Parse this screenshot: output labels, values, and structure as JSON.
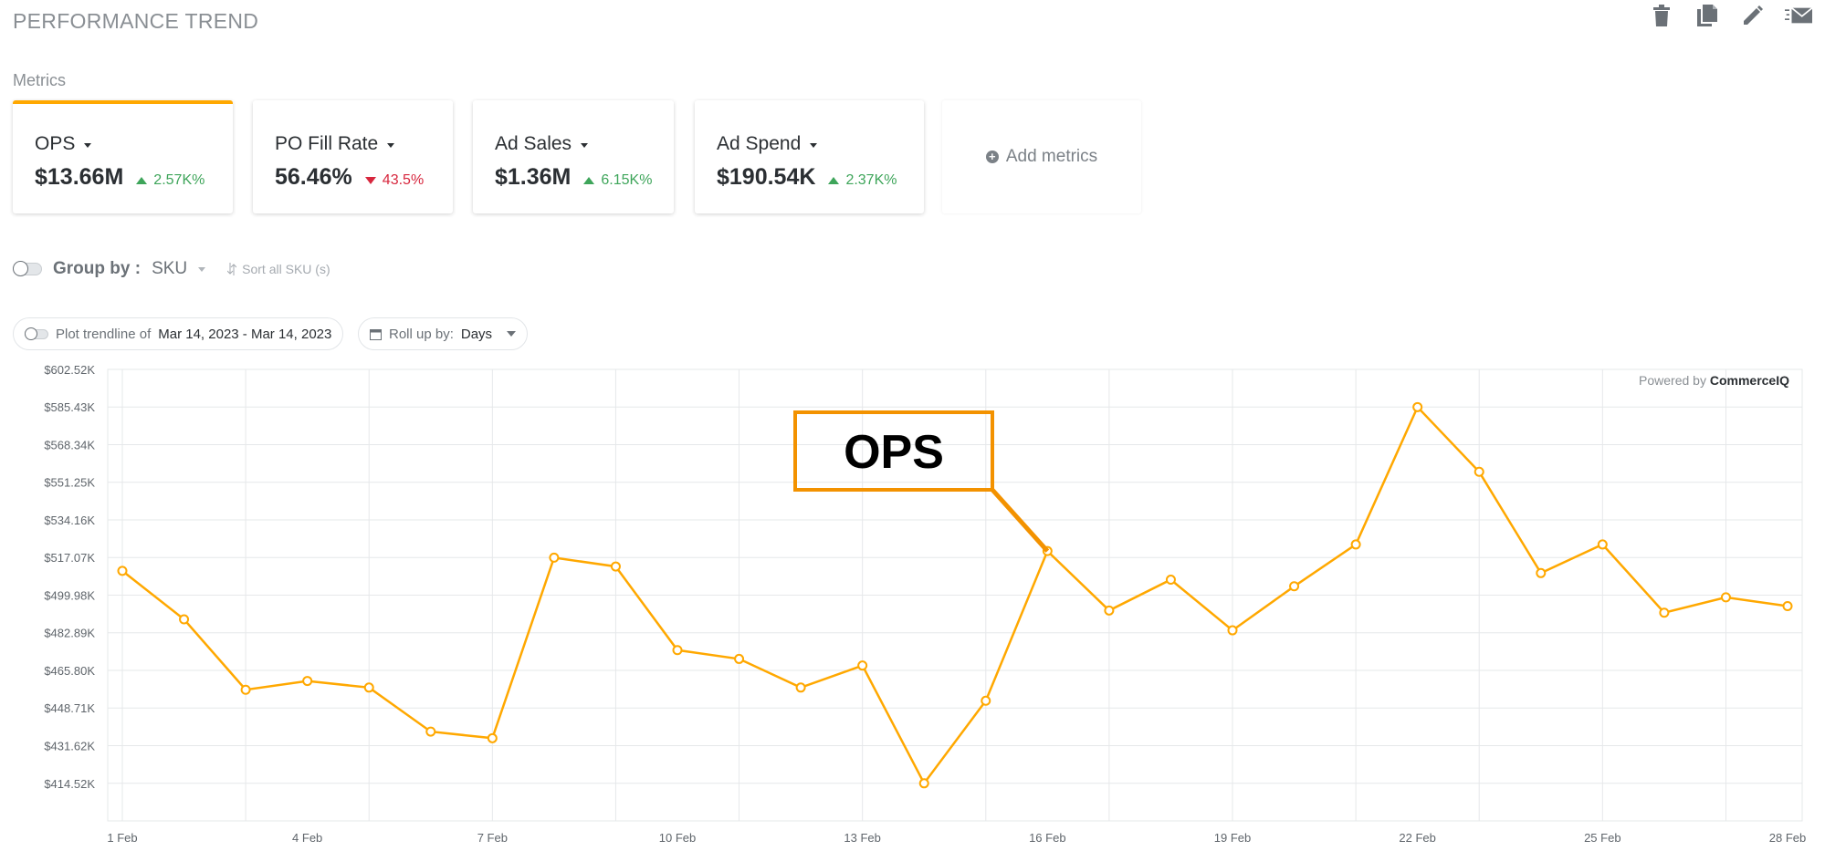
{
  "header": {
    "title": "PERFORMANCE TREND"
  },
  "toolbar": {
    "icons": [
      "trash-icon",
      "copy-icon",
      "pencil-icon",
      "email-icon"
    ]
  },
  "metrics": {
    "label": "Metrics",
    "cards": [
      {
        "name": "OPS",
        "value": "$13.66M",
        "delta": "2.57K%",
        "direction": "up",
        "active": true
      },
      {
        "name": "PO Fill Rate",
        "value": "56.46%",
        "delta": "43.5%",
        "direction": "down",
        "active": false
      },
      {
        "name": "Ad Sales",
        "value": "$1.36M",
        "delta": "6.15K%",
        "direction": "up",
        "active": false
      },
      {
        "name": "Ad Spend",
        "value": "$190.54K",
        "delta": "2.37K%",
        "direction": "up",
        "active": false
      }
    ],
    "add_label": "Add metrics"
  },
  "group_by": {
    "label": "Group by :",
    "value": "SKU",
    "sort_label": "Sort all SKU (s)"
  },
  "trendline": {
    "label": "Plot trendline of",
    "range": "Mar 14, 2023 - Mar 14, 2023"
  },
  "rollup": {
    "label": "Roll up by:",
    "value": "Days"
  },
  "powered_by": {
    "prefix": "Powered by",
    "brand": "CommerceIQ"
  },
  "colors": {
    "accent": "#ffa800",
    "up": "#3ea55a",
    "down": "#d7263d",
    "callout": "#f39200"
  },
  "chart_data": {
    "type": "line",
    "x": [
      "1 Feb",
      "2 Feb",
      "3 Feb",
      "4 Feb",
      "5 Feb",
      "6 Feb",
      "7 Feb",
      "8 Feb",
      "9 Feb",
      "10 Feb",
      "11 Feb",
      "12 Feb",
      "13 Feb",
      "14 Feb",
      "15 Feb",
      "16 Feb",
      "17 Feb",
      "18 Feb",
      "19 Feb",
      "20 Feb",
      "21 Feb",
      "22 Feb",
      "23 Feb",
      "24 Feb",
      "25 Feb",
      "26 Feb",
      "27 Feb",
      "28 Feb"
    ],
    "xticks": [
      "1 Feb",
      "4 Feb",
      "7 Feb",
      "10 Feb",
      "13 Feb",
      "16 Feb",
      "19 Feb",
      "22 Feb",
      "25 Feb",
      "28 Feb"
    ],
    "series": [
      {
        "values": [
          511,
          489,
          457,
          461,
          458,
          438,
          435,
          517,
          513,
          475,
          471,
          458,
          468,
          414.5,
          452,
          520,
          493,
          507,
          484,
          504,
          523,
          585.4,
          556,
          510,
          523,
          492,
          499,
          495
        ]
      }
    ],
    "yticks": [
      "$602.52K",
      "$585.43K",
      "$568.34K",
      "$551.25K",
      "$534.16K",
      "$517.07K",
      "$499.98K",
      "$482.89K",
      "$465.80K",
      "$448.71K",
      "$431.62K",
      "$414.52K"
    ],
    "ylim": [
      397.43,
      602.52
    ],
    "grid": true,
    "annotation": {
      "text": "OPS",
      "x": "16 Feb"
    }
  }
}
